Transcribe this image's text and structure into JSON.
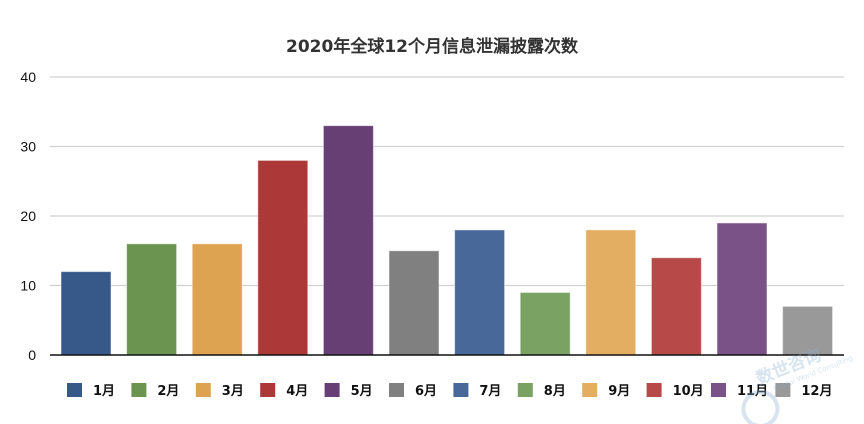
{
  "chart_data": {
    "type": "bar",
    "title": "2020年全球12个月信息泄漏披露次数",
    "xlabel": "",
    "ylabel": "",
    "categories": [
      "1月",
      "2月",
      "3月",
      "4月",
      "5月",
      "6月",
      "7月",
      "8月",
      "9月",
      "10月",
      "11月",
      "12月"
    ],
    "values": [
      12,
      16,
      16,
      28,
      33,
      15,
      18,
      9,
      18,
      14,
      19,
      7
    ],
    "colors": [
      "#37598a",
      "#6a9450",
      "#dea350",
      "#ad3838",
      "#683f74",
      "#808080",
      "#48689a",
      "#7aa262",
      "#e3ae62",
      "#b74a48",
      "#7b5288",
      "#999999"
    ],
    "ylim": [
      0,
      40
    ],
    "yticks": [
      0,
      10,
      20,
      30,
      40
    ],
    "grid": true,
    "legend": "bottom"
  },
  "watermark": {
    "text": "数世咨询",
    "subtext": "Digital World Consulting"
  }
}
